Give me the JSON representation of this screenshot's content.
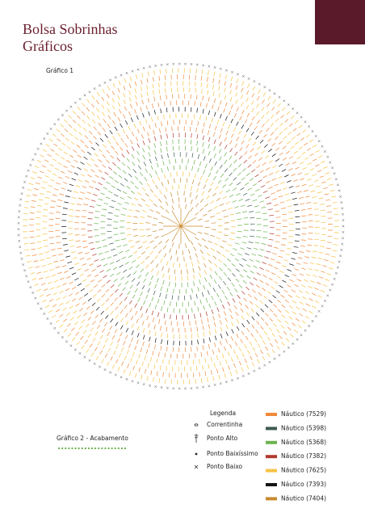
{
  "header": {
    "title_line_1": "Bolsa Sobrinhas",
    "title_line_2": "Gráficos"
  },
  "chart_1": {
    "label": "Gráfico 1"
  },
  "chart_2": {
    "label": "Gráfico 2 - Acabamento"
  },
  "legend": {
    "title": "Legenda",
    "stitches": [
      "Correntinha",
      "Ponto Alto",
      "Ponto Baixíssimo",
      "Ponto Baixo"
    ],
    "colors": [
      {
        "name": "Náutico (7529)",
        "color": "#f0893a"
      },
      {
        "name": "Náutico (5398)",
        "color": "#3e5c52"
      },
      {
        "name": "Náutico (5368)",
        "color": "#6cb24e"
      },
      {
        "name": "Náutico (7382)",
        "color": "#b03a2e"
      },
      {
        "name": "Náutico (7625)",
        "color": "#f6c343"
      },
      {
        "name": "Náutico (7393)",
        "color": "#151515"
      },
      {
        "name": "Náutico (7404)",
        "color": "#c98a2e"
      }
    ]
  }
}
